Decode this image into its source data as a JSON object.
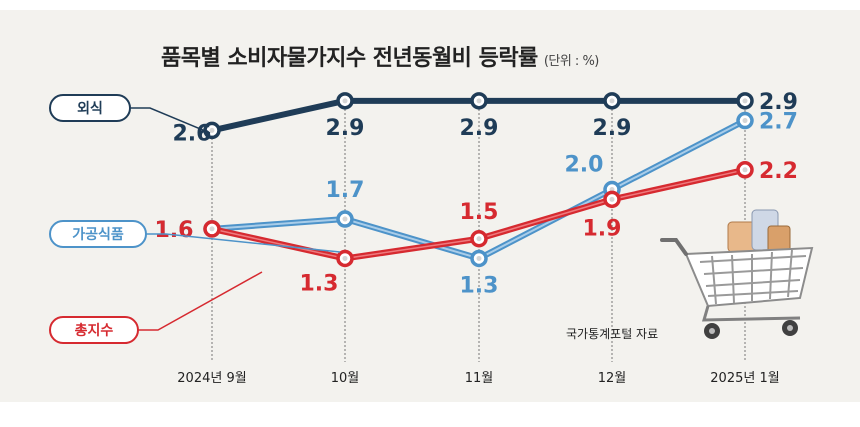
{
  "title": "품목별 소비자물가지수 전년동월비 등락률",
  "unit": "(단위 : %)",
  "source": "국가통계포털 자료",
  "chart_data": {
    "type": "line",
    "title": "품목별 소비자물가지수 전년동월비 등락률",
    "unit": "(단위 : %)",
    "categories": [
      "2024년 9월",
      "10월",
      "11월",
      "12월",
      "2025년 1월"
    ],
    "series": [
      {
        "name": "외식",
        "values": [
          2.6,
          2.9,
          2.9,
          2.9,
          2.9
        ],
        "color": "#1f3c57",
        "labels": [
          "2.6",
          "2.9",
          "2.9",
          "2.9",
          "2.9"
        ]
      },
      {
        "name": "가공식품",
        "values": [
          1.6,
          1.7,
          1.3,
          2.0,
          2.7
        ],
        "color": "#4d93c9",
        "labels": [
          "1.6",
          "1.7",
          "1.3",
          "2.0",
          "2.7"
        ]
      },
      {
        "name": "총지수",
        "values": [
          1.6,
          1.3,
          1.5,
          1.9,
          2.2
        ],
        "color": "#d62a30",
        "labels": [
          "1.6",
          "1.3",
          "1.5",
          "1.9",
          "2.2"
        ]
      }
    ],
    "grid": "vertical dotted",
    "legend": "left, callout labels"
  }
}
